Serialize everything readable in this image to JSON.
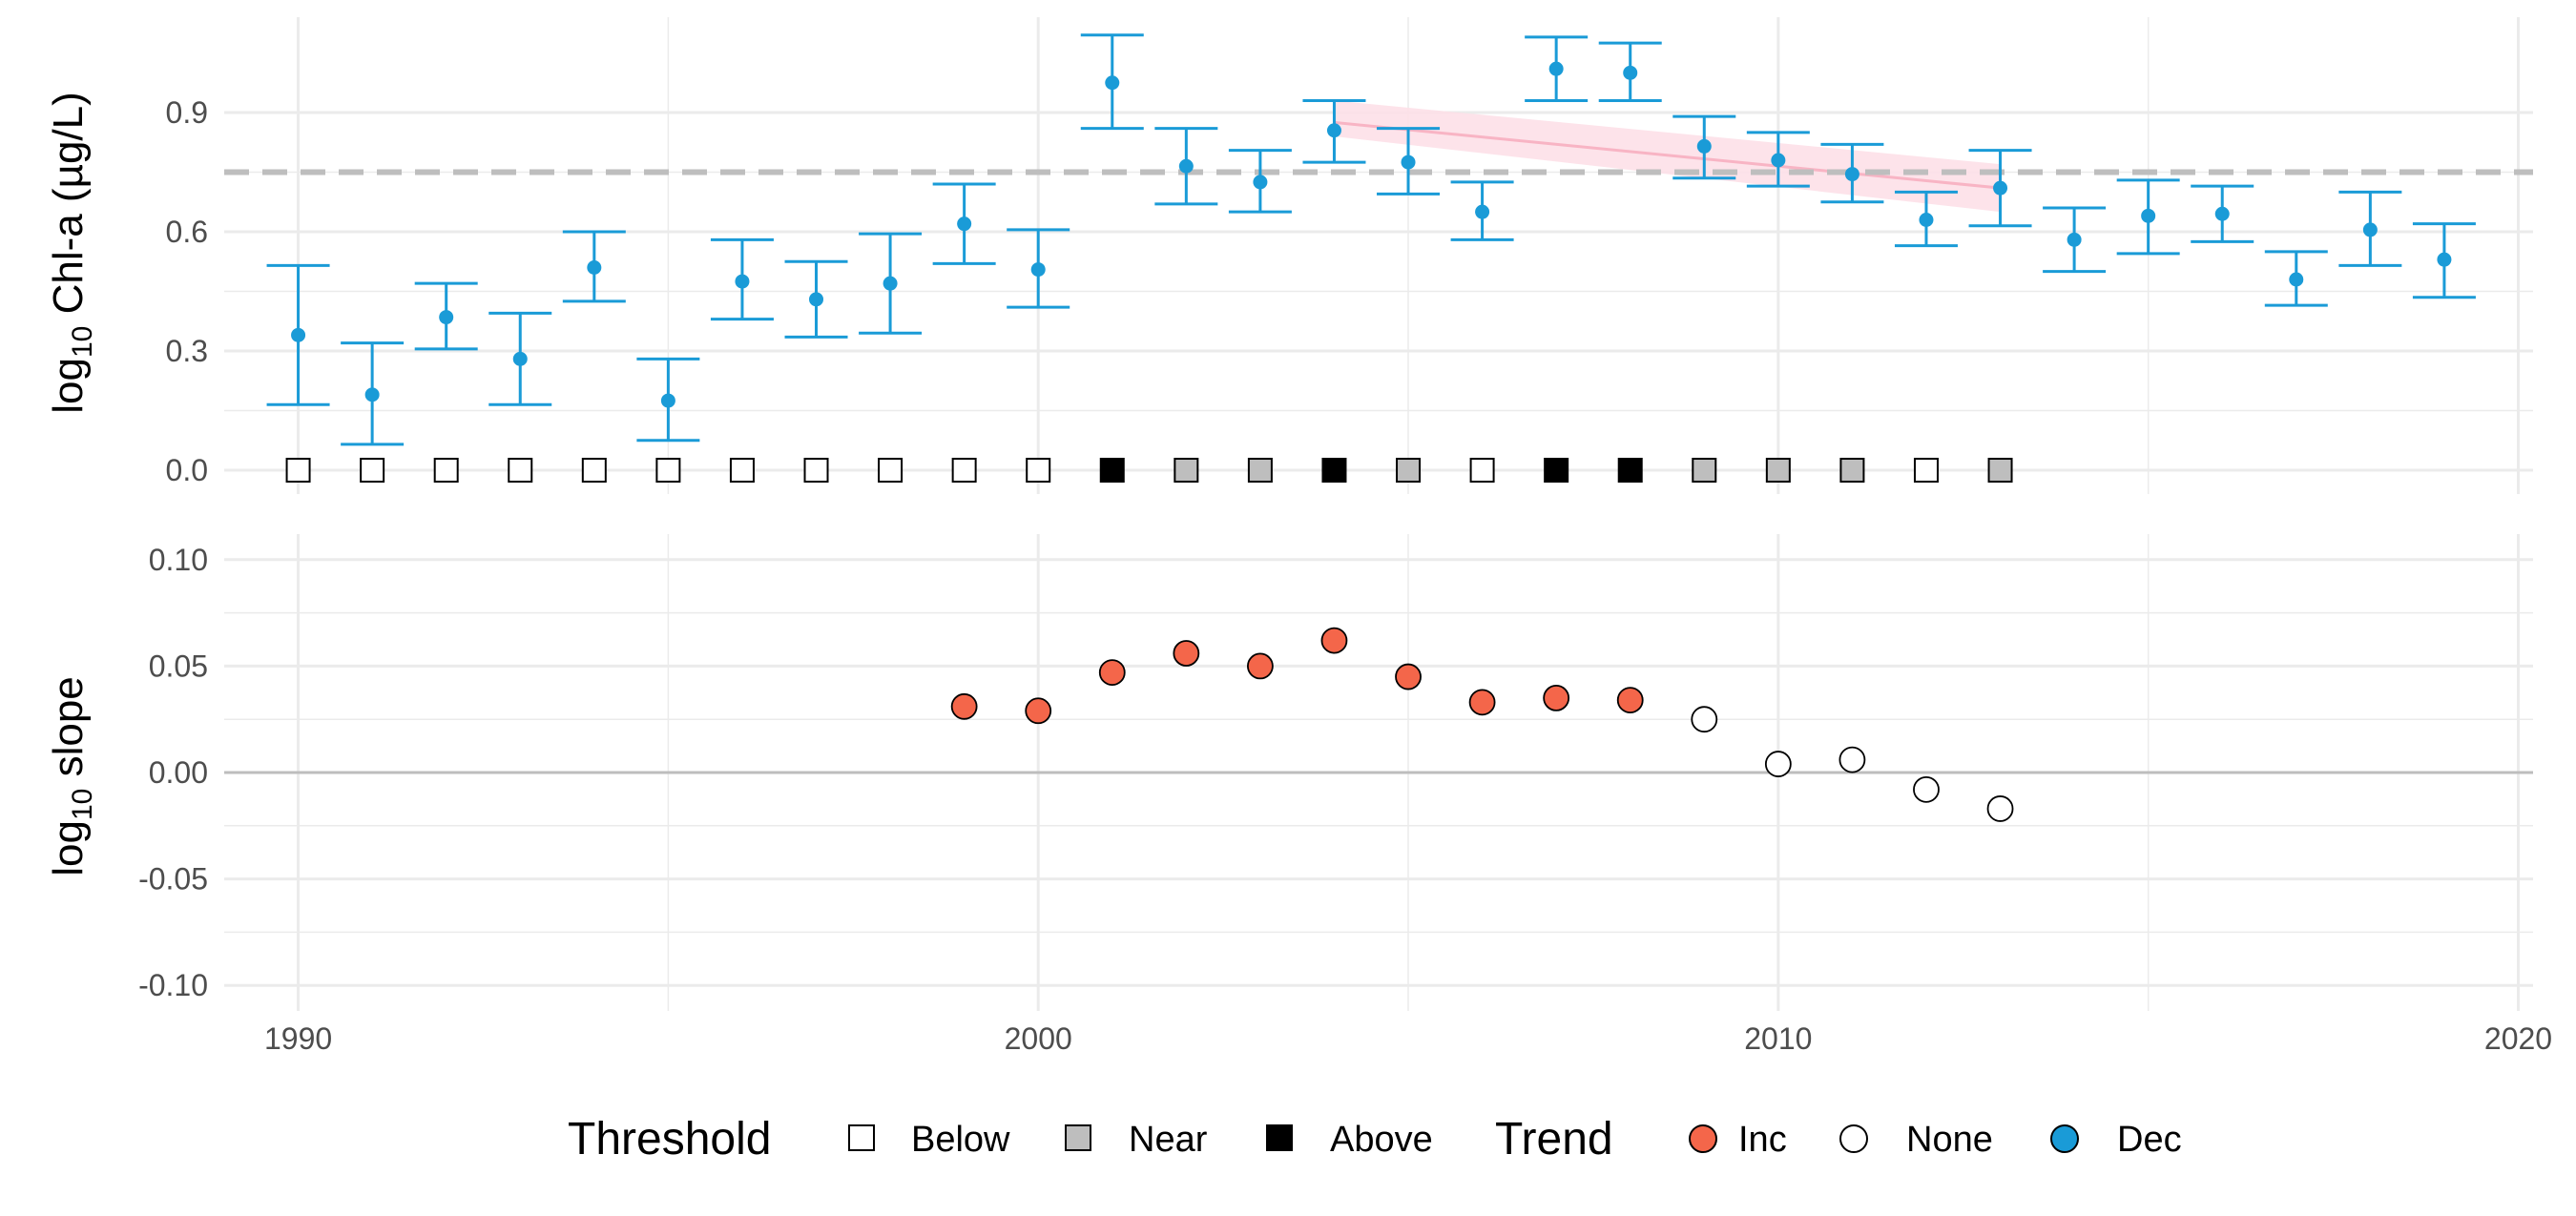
{
  "chart_data": [
    {
      "type": "scatter",
      "panel": "top",
      "ylabel": {
        "prefix": "log",
        "sub": "10",
        "suffix": " Chl-a (µg/L)"
      },
      "ylim": [
        -0.06,
        1.14
      ],
      "yticks": [
        "0.0",
        "0.3",
        "0.6",
        "0.9"
      ],
      "ytick_values": [
        0,
        0.3,
        0.6,
        0.9
      ],
      "xlim": [
        1989,
        2020.2
      ],
      "xticks": [
        1990,
        2000,
        2010,
        2020
      ],
      "threshold_line": 0.75,
      "grid": true,
      "points": [
        {
          "year": 1990,
          "mean": 0.34,
          "lower": 0.165,
          "upper": 0.515
        },
        {
          "year": 1991,
          "mean": 0.19,
          "lower": 0.065,
          "upper": 0.32
        },
        {
          "year": 1992,
          "mean": 0.385,
          "lower": 0.305,
          "upper": 0.47
        },
        {
          "year": 1993,
          "mean": 0.28,
          "lower": 0.165,
          "upper": 0.395
        },
        {
          "year": 1994,
          "mean": 0.51,
          "lower": 0.425,
          "upper": 0.6
        },
        {
          "year": 1995,
          "mean": 0.175,
          "lower": 0.075,
          "upper": 0.28
        },
        {
          "year": 1996,
          "mean": 0.475,
          "lower": 0.38,
          "upper": 0.58
        },
        {
          "year": 1997,
          "mean": 0.43,
          "lower": 0.335,
          "upper": 0.525
        },
        {
          "year": 1998,
          "mean": 0.47,
          "lower": 0.345,
          "upper": 0.595
        },
        {
          "year": 1999,
          "mean": 0.62,
          "lower": 0.52,
          "upper": 0.72
        },
        {
          "year": 2000,
          "mean": 0.505,
          "lower": 0.41,
          "upper": 0.605
        },
        {
          "year": 2001,
          "mean": 0.975,
          "lower": 0.86,
          "upper": 1.095
        },
        {
          "year": 2002,
          "mean": 0.765,
          "lower": 0.67,
          "upper": 0.86
        },
        {
          "year": 2003,
          "mean": 0.725,
          "lower": 0.65,
          "upper": 0.805
        },
        {
          "year": 2004,
          "mean": 0.855,
          "lower": 0.775,
          "upper": 0.93
        },
        {
          "year": 2005,
          "mean": 0.775,
          "lower": 0.695,
          "upper": 0.86
        },
        {
          "year": 2006,
          "mean": 0.65,
          "lower": 0.58,
          "upper": 0.725
        },
        {
          "year": 2007,
          "mean": 1.01,
          "lower": 0.93,
          "upper": 1.09
        },
        {
          "year": 2008,
          "mean": 1.0,
          "lower": 0.93,
          "upper": 1.075
        },
        {
          "year": 2009,
          "mean": 0.815,
          "lower": 0.735,
          "upper": 0.89
        },
        {
          "year": 2010,
          "mean": 0.78,
          "lower": 0.715,
          "upper": 0.85
        },
        {
          "year": 2011,
          "mean": 0.745,
          "lower": 0.675,
          "upper": 0.82
        },
        {
          "year": 2012,
          "mean": 0.63,
          "lower": 0.565,
          "upper": 0.7
        },
        {
          "year": 2013,
          "mean": 0.71,
          "lower": 0.615,
          "upper": 0.805
        },
        {
          "year": 2014,
          "mean": 0.58,
          "lower": 0.5,
          "upper": 0.66
        },
        {
          "year": 2015,
          "mean": 0.64,
          "lower": 0.545,
          "upper": 0.73
        },
        {
          "year": 2016,
          "mean": 0.645,
          "lower": 0.575,
          "upper": 0.715
        },
        {
          "year": 2017,
          "mean": 0.48,
          "lower": 0.415,
          "upper": 0.55
        },
        {
          "year": 2018,
          "mean": 0.605,
          "lower": 0.515,
          "upper": 0.7
        },
        {
          "year": 2019,
          "mean": 0.53,
          "lower": 0.435,
          "upper": 0.62
        }
      ],
      "thresholds": [
        {
          "year": 1990,
          "status": "Below"
        },
        {
          "year": 1991,
          "status": "Below"
        },
        {
          "year": 1992,
          "status": "Below"
        },
        {
          "year": 1993,
          "status": "Below"
        },
        {
          "year": 1994,
          "status": "Below"
        },
        {
          "year": 1995,
          "status": "Below"
        },
        {
          "year": 1996,
          "status": "Below"
        },
        {
          "year": 1997,
          "status": "Below"
        },
        {
          "year": 1998,
          "status": "Below"
        },
        {
          "year": 1999,
          "status": "Below"
        },
        {
          "year": 2000,
          "status": "Below"
        },
        {
          "year": 2001,
          "status": "Above"
        },
        {
          "year": 2002,
          "status": "Near"
        },
        {
          "year": 2003,
          "status": "Near"
        },
        {
          "year": 2004,
          "status": "Above"
        },
        {
          "year": 2005,
          "status": "Near"
        },
        {
          "year": 2006,
          "status": "Below"
        },
        {
          "year": 2007,
          "status": "Above"
        },
        {
          "year": 2008,
          "status": "Above"
        },
        {
          "year": 2009,
          "status": "Near"
        },
        {
          "year": 2010,
          "status": "Near"
        },
        {
          "year": 2011,
          "status": "Near"
        },
        {
          "year": 2012,
          "status": "Below"
        },
        {
          "year": 2013,
          "status": "Near"
        }
      ],
      "trend_line": {
        "x": [
          2004,
          2013
        ],
        "y": [
          0.875,
          0.71
        ],
        "band_upper": [
          0.93,
          0.77
        ],
        "band_lower": [
          0.84,
          0.65
        ]
      }
    },
    {
      "type": "scatter",
      "panel": "bottom",
      "ylabel": {
        "prefix": "log",
        "sub": "10",
        "suffix": " slope"
      },
      "ylim": [
        -0.112,
        0.112
      ],
      "yticks": [
        "-0.10",
        "-0.05",
        "0.00",
        "0.05",
        "0.10"
      ],
      "ytick_values": [
        -0.1,
        -0.05,
        0,
        0.05,
        0.1
      ],
      "xlim": [
        1989,
        2020.2
      ],
      "xticks": [
        1990,
        2000,
        2010,
        2020
      ],
      "zero_line": 0,
      "grid": true,
      "points": [
        {
          "year": 1999,
          "slope": 0.031,
          "trend": "Inc"
        },
        {
          "year": 2000,
          "slope": 0.029,
          "trend": "Inc"
        },
        {
          "year": 2001,
          "slope": 0.047,
          "trend": "Inc"
        },
        {
          "year": 2002,
          "slope": 0.056,
          "trend": "Inc"
        },
        {
          "year": 2003,
          "slope": 0.05,
          "trend": "Inc"
        },
        {
          "year": 2004,
          "slope": 0.062,
          "trend": "Inc"
        },
        {
          "year": 2005,
          "slope": 0.045,
          "trend": "Inc"
        },
        {
          "year": 2006,
          "slope": 0.033,
          "trend": "Inc"
        },
        {
          "year": 2007,
          "slope": 0.035,
          "trend": "Inc"
        },
        {
          "year": 2008,
          "slope": 0.034,
          "trend": "Inc"
        },
        {
          "year": 2009,
          "slope": 0.025,
          "trend": "None"
        },
        {
          "year": 2010,
          "slope": 0.004,
          "trend": "None"
        },
        {
          "year": 2011,
          "slope": 0.006,
          "trend": "None"
        },
        {
          "year": 2012,
          "slope": -0.008,
          "trend": "None"
        },
        {
          "year": 2013,
          "slope": -0.017,
          "trend": "None"
        }
      ]
    }
  ],
  "legend": {
    "threshold_title": "Threshold",
    "threshold_items": [
      {
        "label": "Below",
        "fill": "#ffffff"
      },
      {
        "label": "Near",
        "fill": "#bebebe"
      },
      {
        "label": "Above",
        "fill": "#000000"
      }
    ],
    "trend_title": "Trend",
    "trend_items": [
      {
        "label": "Inc",
        "fill": "#f4664a"
      },
      {
        "label": "None",
        "fill": "#ffffff"
      },
      {
        "label": "Dec",
        "fill": "#1a9bd7"
      }
    ]
  },
  "colors": {
    "errorbar": "#1a9bd7",
    "trend_line": "#f8b4c4",
    "trend_band": "#fde0e8",
    "threshold_line": "#bebebe",
    "grid": "#ebebeb",
    "zero_line": "#bdbdbd"
  }
}
